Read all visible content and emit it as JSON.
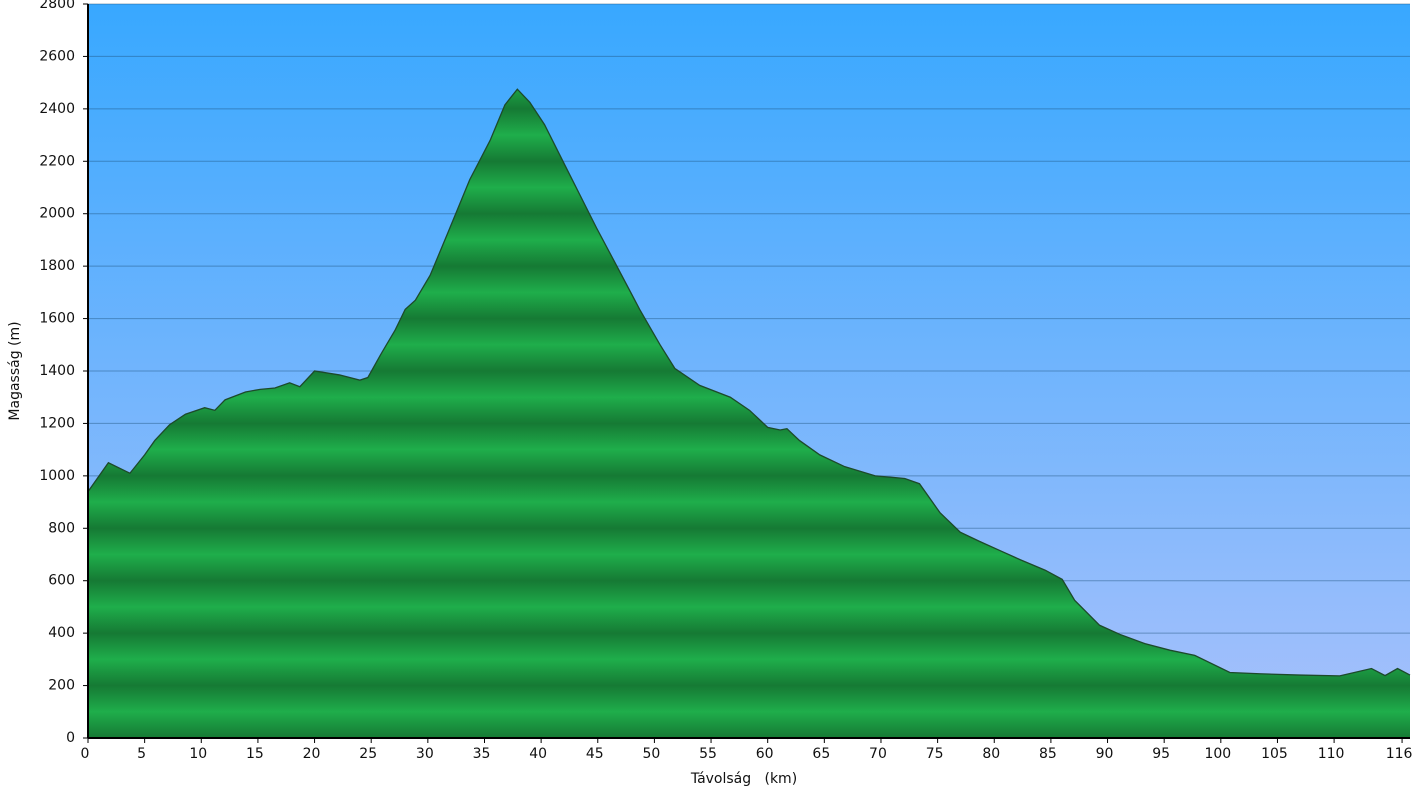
{
  "chart_data": {
    "type": "area",
    "x_label": "Távolság   (km)",
    "y_label": "Magasság (m)",
    "x": [
      0,
      1.8,
      3.7,
      5,
      5.9,
      7.2,
      8.6,
      10.3,
      11.2,
      12.1,
      13.9,
      15.2,
      16.5,
      17.8,
      18.7,
      20,
      22.2,
      24,
      24.7,
      25.8,
      27.1,
      28,
      28.9,
      30.2,
      31.7,
      33.7,
      35.5,
      36.8,
      37.9,
      39,
      40.3,
      42.1,
      44.9,
      46.5,
      48.7,
      50.5,
      51.8,
      54,
      56.7,
      58.4,
      60,
      61.1,
      61.7,
      62.8,
      64.6,
      66.8,
      69.5,
      72.1,
      73.4,
      75.2,
      77,
      78.7,
      80.5,
      82.3,
      84.5,
      86,
      87.1,
      89.3,
      91.1,
      93.3,
      95.5,
      97.7,
      100.8,
      103.4,
      107,
      110.5,
      113.3,
      114.5,
      115.6,
      116.7
    ],
    "values": [
      940,
      1050,
      1010,
      1080,
      1135,
      1195,
      1235,
      1260,
      1250,
      1290,
      1320,
      1330,
      1335,
      1355,
      1340,
      1400,
      1385,
      1365,
      1375,
      1460,
      1555,
      1635,
      1670,
      1765,
      1920,
      2130,
      2280,
      2415,
      2475,
      2425,
      2340,
      2185,
      1945,
      1815,
      1635,
      1500,
      1410,
      1345,
      1300,
      1250,
      1185,
      1175,
      1180,
      1135,
      1080,
      1035,
      1000,
      990,
      970,
      860,
      785,
      750,
      715,
      680,
      640,
      605,
      525,
      430,
      395,
      360,
      335,
      315,
      250,
      245,
      240,
      237,
      265,
      238,
      265,
      240
    ],
    "color": "#1fae4b",
    "xlim": [
      0,
      116.7
    ],
    "xticks": [
      0,
      5,
      10,
      15,
      20,
      25,
      30,
      35,
      40,
      45,
      50,
      55,
      60,
      65,
      70,
      75,
      80,
      85,
      90,
      95,
      100,
      105,
      110,
      116
    ],
    "ylim": [
      0,
      2800
    ],
    "yticks": [
      0,
      200,
      400,
      600,
      800,
      1000,
      1200,
      1400,
      1600,
      1800,
      2000,
      2200,
      2400,
      2600,
      2800
    ],
    "grid": true
  }
}
